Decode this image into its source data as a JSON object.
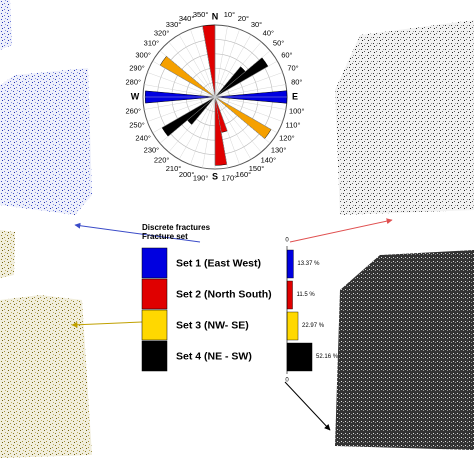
{
  "chart_data": [
    {
      "type": "rose",
      "directions": [
        355,
        175,
        165,
        270,
        90,
        305,
        125,
        55,
        235,
        45,
        225
      ],
      "values": [
        1.0,
        0.95,
        0.5,
        0.97,
        1.0,
        0.88,
        0.9,
        0.85,
        0.85,
        0.55,
        0.5
      ],
      "colors": [
        "#e00000",
        "#e00000",
        "#e00000",
        "#0000e0",
        "#0000e0",
        "#f5a000",
        "#f5a000",
        "#000000",
        "#000000",
        "#000000",
        "#000000"
      ],
      "rlim": [
        0,
        1
      ],
      "bin_width": 10,
      "cardinals": [
        {
          "value": 0,
          "label": "N"
        },
        {
          "value": 90,
          "label": "E"
        },
        {
          "value": 180,
          "label": "S"
        },
        {
          "value": 270,
          "label": "W"
        }
      ],
      "xticks": [
        {
          "value": 0,
          "label": "0°"
        },
        {
          "value": 10,
          "label": "10°"
        },
        {
          "value": 20,
          "label": "20°"
        },
        {
          "value": 30,
          "label": "30°"
        },
        {
          "value": 40,
          "label": "40°"
        },
        {
          "value": 50,
          "label": "50°"
        },
        {
          "value": 60,
          "label": "60°"
        },
        {
          "value": 70,
          "label": "70°"
        },
        {
          "value": 80,
          "label": "80°"
        },
        {
          "value": 90,
          "label": "90°"
        },
        {
          "value": 100,
          "label": "100°"
        },
        {
          "value": 110,
          "label": "110°"
        },
        {
          "value": 120,
          "label": "120°"
        },
        {
          "value": 130,
          "label": "130°"
        },
        {
          "value": 140,
          "label": "140°"
        },
        {
          "value": 150,
          "label": "150°"
        },
        {
          "value": 160,
          "label": "160°"
        },
        {
          "value": 170,
          "label": "170°"
        },
        {
          "value": 180,
          "label": "180°"
        },
        {
          "value": 190,
          "label": "190°"
        },
        {
          "value": 200,
          "label": "200°"
        },
        {
          "value": 210,
          "label": "210°"
        },
        {
          "value": 220,
          "label": "220°"
        },
        {
          "value": 230,
          "label": "230°"
        },
        {
          "value": 240,
          "label": "240°"
        },
        {
          "value": 250,
          "label": "250°"
        },
        {
          "value": 260,
          "label": "260°"
        },
        {
          "value": 270,
          "label": "270°"
        },
        {
          "value": 280,
          "label": "280°"
        },
        {
          "value": 290,
          "label": "290°"
        },
        {
          "value": 300,
          "label": "300°"
        },
        {
          "value": 310,
          "label": "310°"
        },
        {
          "value": 320,
          "label": "320°"
        },
        {
          "value": 330,
          "label": "330°"
        },
        {
          "value": 340,
          "label": "340°"
        },
        {
          "value": 350,
          "label": "350°"
        }
      ]
    },
    {
      "type": "bar",
      "title": "Discrete fractures",
      "subtitle": "Fracture set",
      "categories": [
        "Set 1 (East West)",
        "Set 2 (North South)",
        "Set 3 (NW- SE)",
        "Set 4 (NE - SW)"
      ],
      "colors": [
        "#0000e0",
        "#e00000",
        "#ffd800",
        "#000000"
      ],
      "values": [
        13.37,
        11.5,
        22.97,
        52.16
      ],
      "value_labels": [
        "13.37 %",
        "11.5 %",
        "22.97 %",
        "52.16 %"
      ],
      "xlim": [
        0,
        100
      ],
      "xticks": [
        {
          "value": 0,
          "label": "0"
        }
      ]
    }
  ]
}
